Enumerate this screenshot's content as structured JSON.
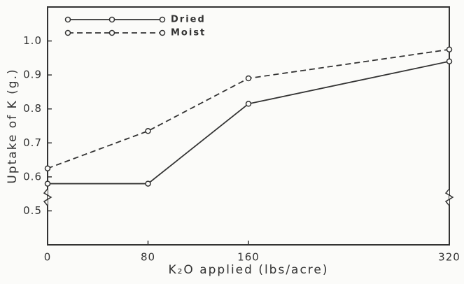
{
  "chart_data": {
    "type": "line",
    "x_label": "K₂O applied (lbs/acre)",
    "y_label": "Uptake of K (g.)",
    "x": [
      0,
      80,
      160,
      320
    ],
    "xlim": [
      0,
      320
    ],
    "xticks": [
      0,
      80,
      160,
      320
    ],
    "ylim": [
      0.4,
      1.1
    ],
    "yticks": [
      0.5,
      0.6,
      0.7,
      0.8,
      0.9,
      {
        "value": 1,
        "label": "1.0"
      }
    ],
    "series": [
      {
        "name": "Dried",
        "color": "#333333",
        "dash": false,
        "values": [
          0.58,
          0.58,
          0.815,
          0.94
        ]
      },
      {
        "name": "Moist",
        "color": "#333333",
        "dash": true,
        "values": [
          0.625,
          0.735,
          0.89,
          0.975
        ]
      }
    ],
    "legend": "upper left"
  }
}
